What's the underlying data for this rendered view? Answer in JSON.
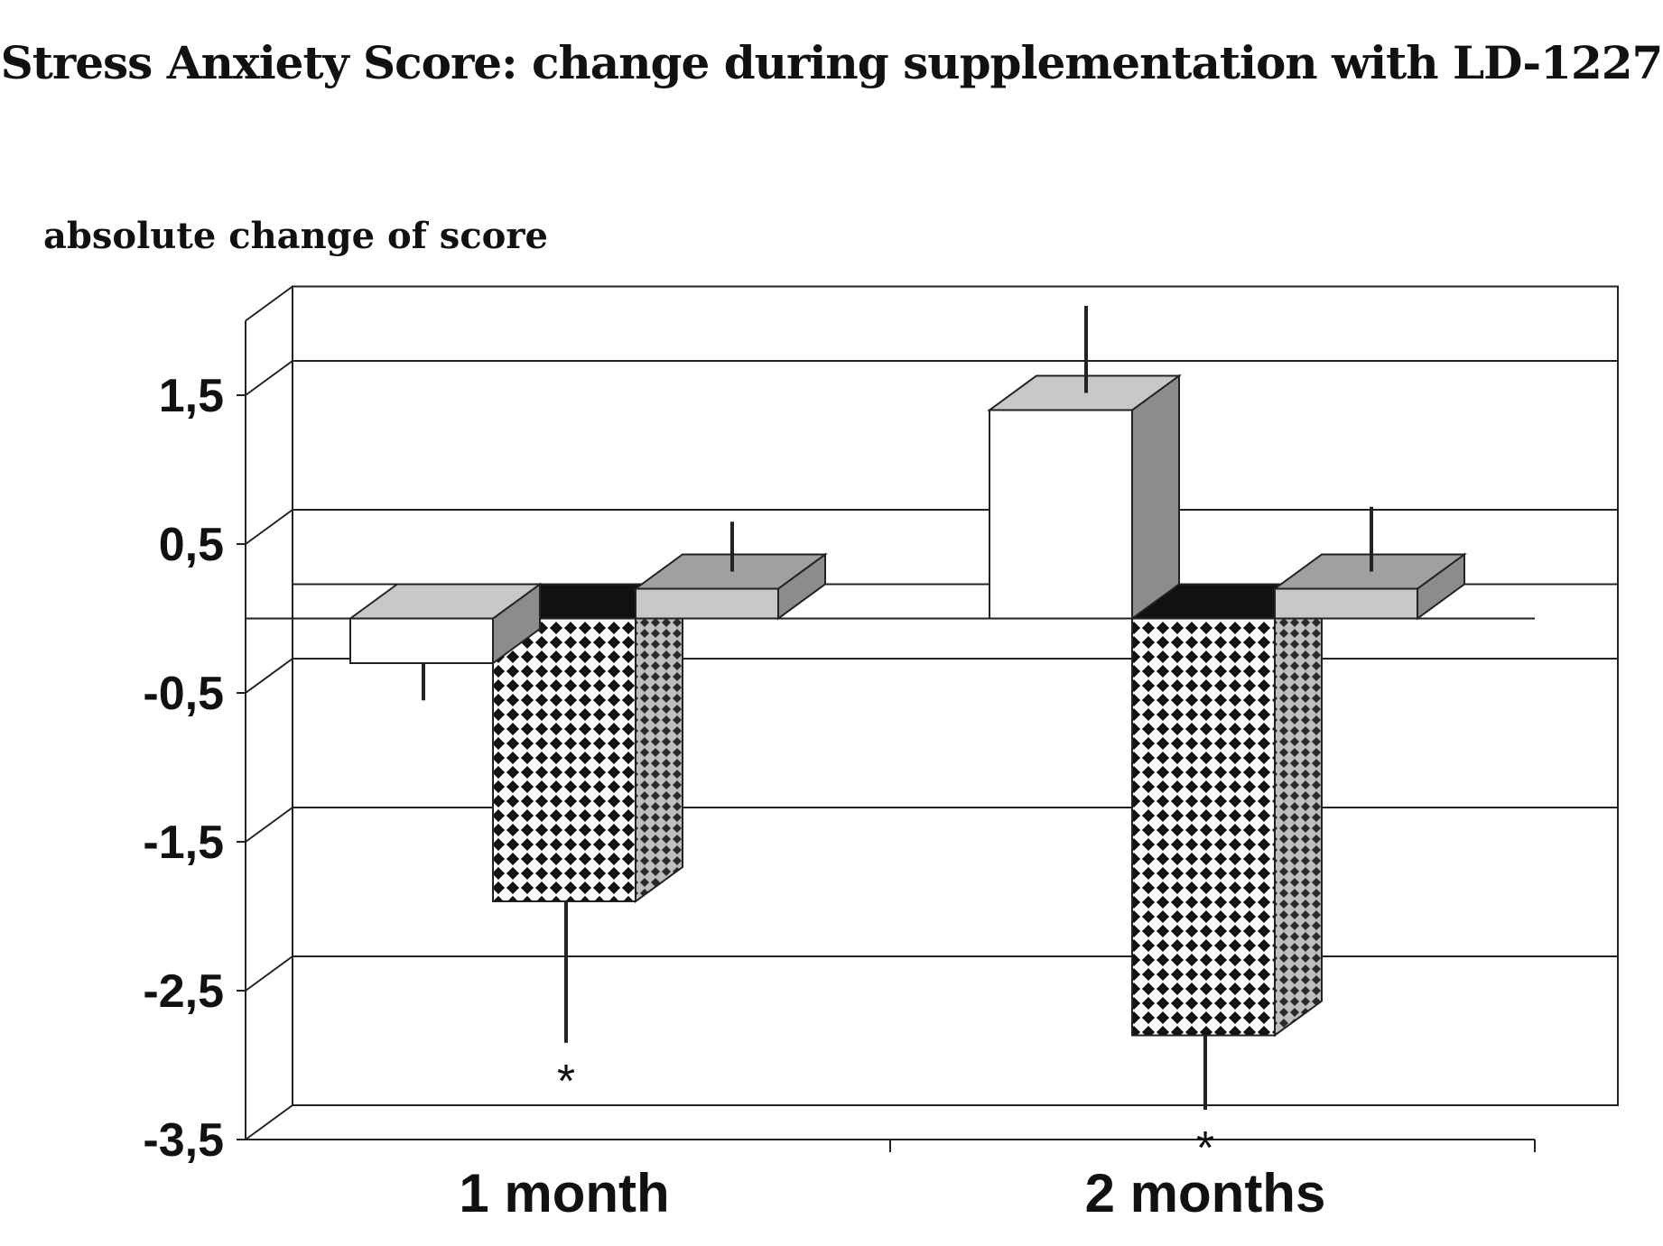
{
  "chart_data": {
    "type": "bar",
    "title": "Stress Anxiety Score: change during supplementation with LD-1227",
    "ylabel": "absolute change of score",
    "xlabel": "",
    "categories": [
      "1 month",
      "2 months"
    ],
    "ylim": [
      -3.5,
      2.0
    ],
    "yticks": [
      1.5,
      0.5,
      -0.5,
      -1.5,
      -2.5,
      -3.5
    ],
    "ytick_labels": [
      "1,5",
      "0,5",
      "-0,5",
      "-1,5",
      "-2,5",
      "-3,5"
    ],
    "grid": true,
    "legend": "none",
    "series": [
      {
        "pattern": "plain-white",
        "values": [
          -0.3,
          1.4
        ],
        "error_plus": [
          0.0,
          0.7
        ],
        "error_minus": [
          0.25,
          0.0
        ]
      },
      {
        "pattern": "checkerboard",
        "values": [
          -1.9,
          -2.8
        ],
        "error_plus": [
          0.0,
          0.0
        ],
        "error_minus": [
          0.95,
          0.5
        ],
        "significance": [
          "*",
          "*"
        ]
      },
      {
        "pattern": "light-gray",
        "values": [
          0.2,
          0.2
        ],
        "error_plus": [
          0.45,
          0.55
        ],
        "error_minus": [
          0.0,
          0.0
        ]
      }
    ],
    "colors": {
      "front_white": "#ffffff",
      "front_gray": "#c8c8c8",
      "side_gray": "#8c8c8c",
      "top_gray": "#a0a0a0",
      "dark_top": "#111111",
      "outline": "#222222",
      "grid": "#222222"
    }
  }
}
